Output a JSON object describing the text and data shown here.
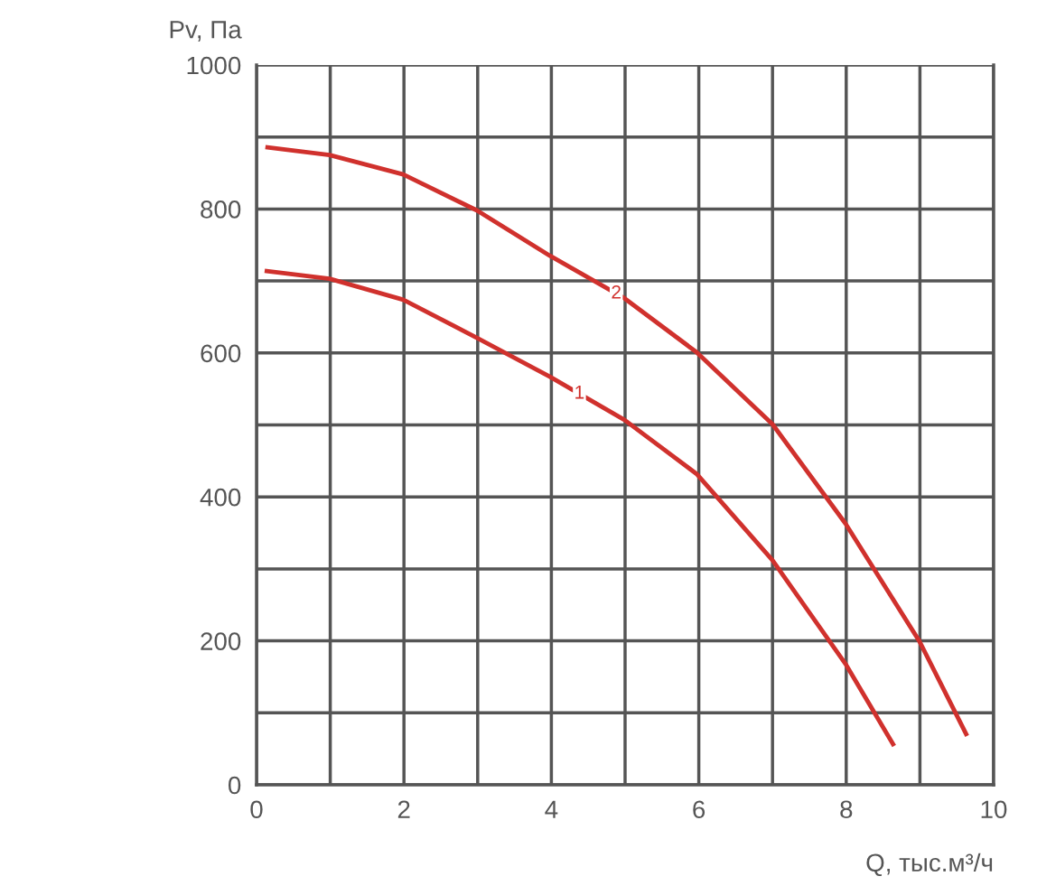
{
  "chart_data": {
    "type": "line",
    "xlabel": "Q, тыс.м³/ч",
    "ylabel": "Pv, Па",
    "xlim": [
      0,
      10
    ],
    "ylim": [
      0,
      1000
    ],
    "xticks": [
      0,
      {
        "value": 1,
        "label": null
      },
      2,
      {
        "value": 3,
        "label": null
      },
      4,
      {
        "value": 5,
        "label": null
      },
      6,
      {
        "value": 7,
        "label": null
      },
      8,
      {
        "value": 9,
        "label": null
      },
      10
    ],
    "yticks": [
      0,
      {
        "value": 100,
        "label": null
      },
      200,
      {
        "value": 300,
        "label": null
      },
      400,
      {
        "value": 500,
        "label": null
      },
      600,
      {
        "value": 700,
        "label": null
      },
      800,
      {
        "value": 900,
        "label": null
      },
      1000
    ],
    "grid": true,
    "legend": false,
    "marker": "none",
    "line_style": "solid",
    "series": [
      {
        "name": "1",
        "color": "#d0312d",
        "x": [
          0.11,
          0.99,
          1.99,
          2.99,
          3.98,
          4.99,
          5.97,
          7.0,
          7.99,
          8.65
        ],
        "values": [
          714,
          703,
          674,
          621,
          567,
          507,
          432,
          312,
          168,
          54
        ]
      },
      {
        "name": "2",
        "color": "#d0312d",
        "x": [
          0.12,
          0.99,
          1.99,
          2.99,
          3.98,
          4.99,
          5.97,
          7.0,
          7.99,
          8.99,
          9.64
        ],
        "values": [
          886,
          875,
          848,
          798,
          735,
          676,
          601,
          501,
          363,
          200,
          68
        ]
      }
    ]
  }
}
